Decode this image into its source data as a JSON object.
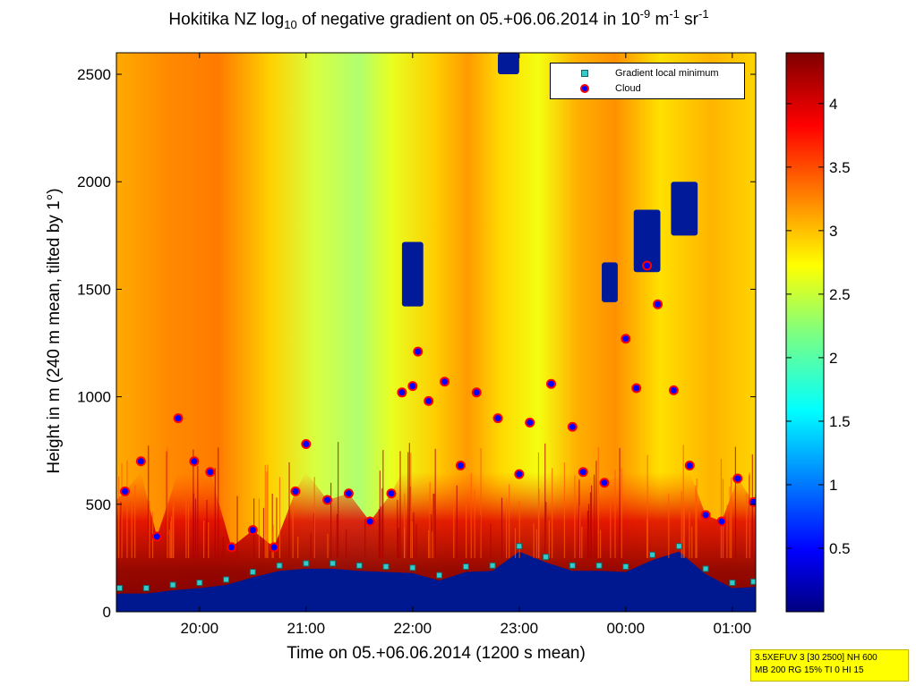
{
  "chart_data": {
    "type": "heatmap",
    "title_parts": {
      "pre": "Hokitika NZ log",
      "sub": "10",
      "mid": " of negative gradient on 05.+06.06.2014 in 10",
      "sup1": "-9",
      "m": " m",
      "sup2": "-1",
      "sr": " sr",
      "sup3": "-1"
    },
    "xlabel": "Time on 05.+06.06.2014 (1200 s mean)",
    "ylabel": "Height in m (240 m mean, tilted by 1°)",
    "x_ticks": [
      "20:00",
      "21:00",
      "22:00",
      "23:00",
      "00:00",
      "01:00"
    ],
    "x_tick_hours": [
      20,
      21,
      22,
      23,
      24,
      25
    ],
    "xlim_hours": [
      19.22,
      25.22
    ],
    "y_ticks": [
      0,
      500,
      1000,
      1500,
      2000,
      2500
    ],
    "ylim": [
      0,
      2600
    ],
    "colorbar": {
      "ticks": [
        "0.5",
        "1",
        "1.5",
        "2",
        "2.5",
        "3",
        "3.5",
        "4"
      ],
      "tick_values": [
        0.5,
        1,
        1.5,
        2,
        2.5,
        3,
        3.5,
        4
      ],
      "range": [
        0,
        4.4
      ],
      "colormap": "jet"
    },
    "legend": [
      {
        "label": "Gradient local minimum",
        "marker": "square",
        "color": "#33cccc"
      },
      {
        "label": "Cloud",
        "marker": "circle",
        "color": "#ff0000",
        "fill": "#0000ff"
      }
    ],
    "legend_placement": "top-right",
    "series": [
      {
        "name": "Gradient local minimum",
        "x_hours": [
          19.25,
          19.5,
          19.75,
          20.0,
          20.25,
          20.5,
          20.75,
          21.0,
          21.25,
          21.5,
          21.75,
          22.0,
          22.25,
          22.5,
          22.75,
          23.0,
          23.25,
          23.5,
          23.75,
          24.0,
          24.25,
          24.5,
          24.75,
          25.0,
          25.2
        ],
        "y": [
          110,
          110,
          125,
          135,
          150,
          185,
          215,
          225,
          225,
          215,
          210,
          205,
          170,
          210,
          215,
          305,
          255,
          215,
          215,
          210,
          265,
          305,
          200,
          135,
          140
        ]
      },
      {
        "name": "Cloud",
        "x_hours": [
          19.3,
          19.45,
          19.6,
          19.8,
          19.95,
          20.1,
          20.3,
          20.5,
          20.7,
          20.9,
          21.0,
          21.2,
          21.4,
          21.6,
          21.8,
          21.9,
          22.0,
          22.05,
          22.15,
          22.3,
          22.45,
          22.6,
          22.8,
          23.0,
          23.1,
          23.3,
          23.5,
          23.6,
          23.8,
          24.0,
          24.1,
          24.2,
          24.3,
          24.45,
          24.6,
          24.75,
          24.9,
          25.05,
          25.2
        ],
        "y": [
          560,
          700,
          350,
          900,
          700,
          650,
          300,
          380,
          300,
          560,
          780,
          520,
          550,
          420,
          550,
          1020,
          1050,
          1210,
          980,
          1070,
          680,
          1020,
          900,
          640,
          880,
          1060,
          860,
          650,
          600,
          1270,
          1040,
          1610,
          1430,
          1030,
          680,
          450,
          420,
          620,
          510
        ]
      }
    ],
    "annotation": [
      "3.5XEFUV 3 [30 2500] NH 600",
      "MB 200 RG 15% TI 0 HI 15"
    ]
  }
}
